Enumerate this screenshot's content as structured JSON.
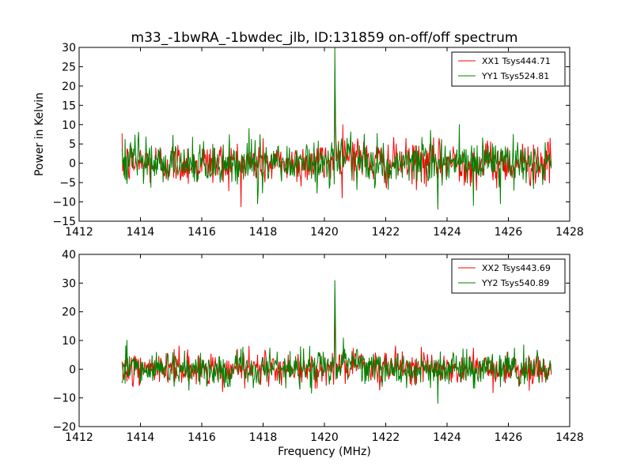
{
  "chart_data": [
    {
      "type": "line",
      "title": "m33_-1bwRA_-1bwdec_jlb, ID:131859 on-off/off spectrum",
      "xlabel": "",
      "ylabel": "Power in Kelvin",
      "xlim": [
        1412,
        1428
      ],
      "ylim": [
        -15,
        30
      ],
      "xticks": [
        "1412",
        "1414",
        "1416",
        "1418",
        "1420",
        "1422",
        "1424",
        "1426",
        "1428"
      ],
      "yticks": [
        "−15",
        "−10",
        "−5",
        "0",
        "5",
        "10",
        "15",
        "20",
        "25",
        "30"
      ],
      "grid": false,
      "legend_position": "top-right",
      "series": [
        {
          "name": "XX1 Tsys444.71",
          "color": "#ff0000",
          "x_range": [
            1413.4,
            1427.4
          ],
          "noise_std": 2.8,
          "peak": {
            "x": 1420.35,
            "y": 24
          },
          "shoulder": {
            "x": 1420.6,
            "y": 10
          }
        },
        {
          "name": "YY1 Tsys524.81",
          "color": "#008000",
          "x_range": [
            1413.4,
            1427.4
          ],
          "noise_std": 3.0,
          "peak": {
            "x": 1420.35,
            "y": 30
          },
          "min": {
            "x": 1423.7,
            "y": -12
          }
        }
      ]
    },
    {
      "type": "line",
      "title": "",
      "xlabel": "Frequency (MHz)",
      "ylabel": "",
      "xlim": [
        1412,
        1428
      ],
      "ylim": [
        -20,
        40
      ],
      "xticks": [
        "1412",
        "1414",
        "1416",
        "1418",
        "1420",
        "1422",
        "1424",
        "1426",
        "1428"
      ],
      "yticks": [
        "−20",
        "−10",
        "0",
        "10",
        "20",
        "30",
        "40"
      ],
      "grid": false,
      "legend_position": "top-right",
      "series": [
        {
          "name": "XX2 Tsys443.69",
          "color": "#ff0000",
          "x_range": [
            1413.4,
            1427.4
          ],
          "noise_std": 2.8,
          "peak": {
            "x": 1420.35,
            "y": 25
          },
          "shoulder": {
            "x": 1420.6,
            "y": 9
          }
        },
        {
          "name": "YY2 Tsys540.89",
          "color": "#008000",
          "x_range": [
            1413.4,
            1427.4
          ],
          "noise_std": 3.0,
          "peak": {
            "x": 1420.35,
            "y": 31
          },
          "min": {
            "x": 1423.7,
            "y": -12
          }
        }
      ]
    }
  ]
}
